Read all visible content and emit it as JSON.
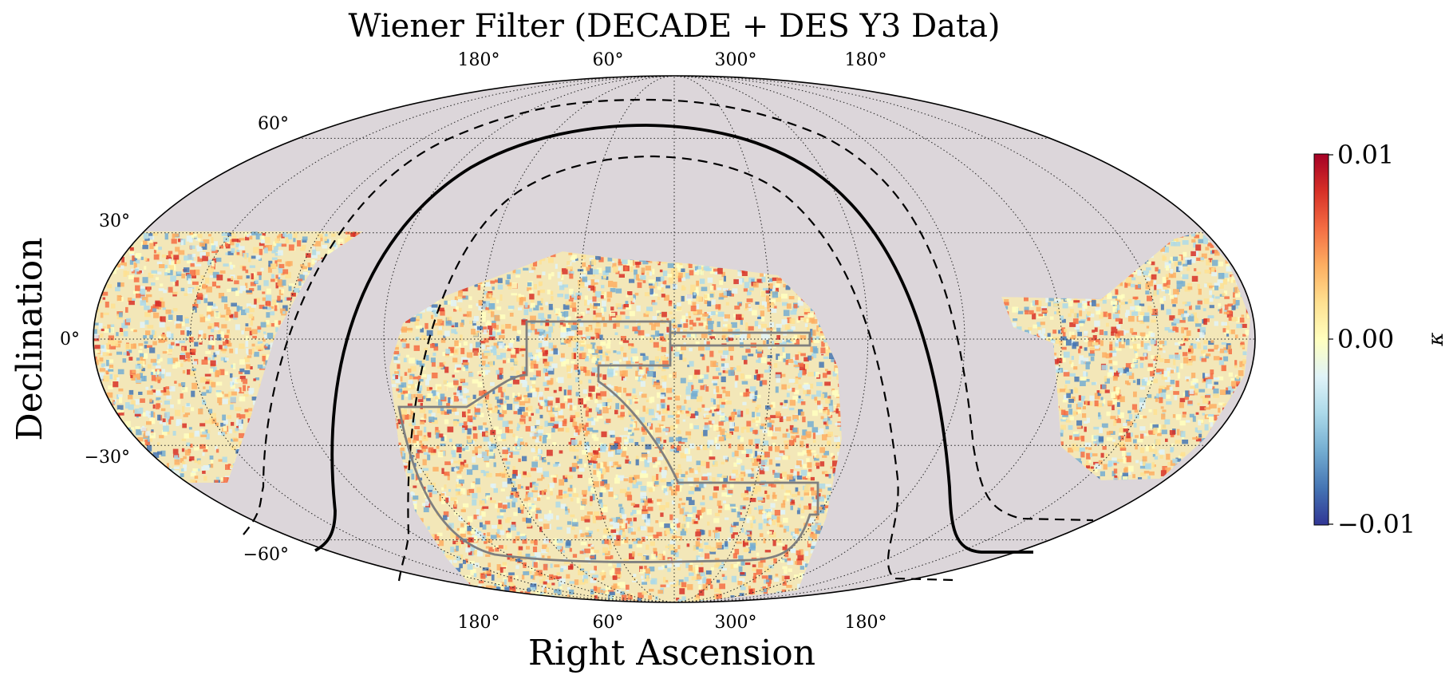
{
  "chart_data": {
    "type": "heatmap",
    "projection": "mollweide",
    "title": "Wiener Filter (DECADE + DES Y3 Data)",
    "xlabel": "Right Ascension",
    "ylabel": "Declination",
    "x_ticks_top": [
      "180°",
      "60°",
      "300°",
      "180°"
    ],
    "x_ticks_bottom": [
      "180°",
      "60°",
      "300°",
      "180°"
    ],
    "y_ticks": [
      {
        "label": "60°",
        "dec": 60
      },
      {
        "label": "30°",
        "dec": 30
      },
      {
        "label": "0°",
        "dec": 0
      },
      {
        "label": "−30°",
        "dec": -30
      },
      {
        "label": "−60°",
        "dec": -60
      }
    ],
    "graticule": true,
    "background_color": "#dcd6da",
    "colorbar": {
      "label": "κ",
      "min": -0.01,
      "max": 0.01,
      "ticks": [
        "0.01",
        "0.00",
        "−0.01"
      ],
      "colormap": "RdYlBu_r",
      "position": "right",
      "colors": [
        "#313695",
        "#4575b4",
        "#74add1",
        "#abd9e9",
        "#e0f3f8",
        "#ffffbf",
        "#fee090",
        "#fdae61",
        "#f46d43",
        "#d73027",
        "#a50026"
      ]
    },
    "series": [
      {
        "style": "solid black curve (galactic plane)"
      },
      {
        "style": "dashed black curves (±10° of galactic plane)"
      },
      {
        "style": "grey outline (DES Y3 footprint)"
      }
    ]
  }
}
